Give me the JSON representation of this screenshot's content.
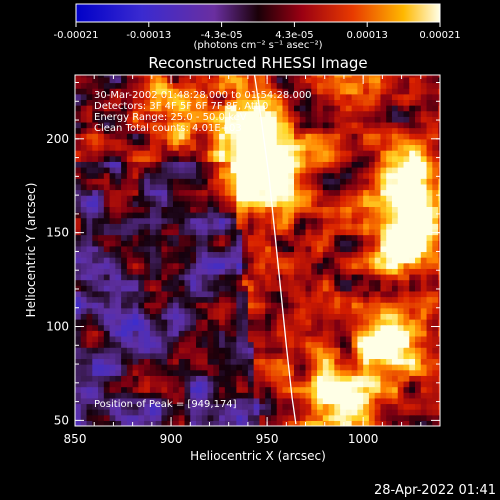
{
  "colorbar": {
    "tick_labels": [
      "-0.00021",
      "-0.00013",
      "-4.3e-05",
      "4.3e-05",
      "0.00013",
      "0.00021"
    ],
    "unit_label": "(photons cm⁻² s⁻¹ asec⁻²)",
    "range": [
      -0.00021,
      0.00021
    ]
  },
  "chart_data": {
    "type": "heatmap",
    "title": "Reconstructed RHESSI Image",
    "xlabel": "Heliocentric X (arcsec)",
    "ylabel": "Heliocentric Y (arcsec)",
    "xlim": [
      850,
      1040
    ],
    "ylim": [
      47,
      234
    ],
    "x_ticks": [
      850,
      900,
      950,
      1000
    ],
    "y_ticks": [
      50,
      100,
      150,
      200
    ],
    "x_tick_labels": [
      "850",
      "900",
      "950",
      "1000"
    ],
    "y_tick_labels": [
      "50",
      "100",
      "150",
      "200"
    ],
    "annotations": [
      "30-Mar-2002 01:48:28.000 to 01:54:28.000",
      "Detectors: 3F 4F 5F 6F 7F 8F, Att 0",
      "Energy Range: 25.0 - 50.0 keV",
      "Clean    Total counts: 4.01E+03"
    ],
    "peak_label": "Position of Peak = [949,174]",
    "peak_position": [
      949,
      174
    ],
    "limb_curve": [
      [
        943,
        237
      ],
      [
        947,
        210
      ],
      [
        951,
        180
      ],
      [
        954,
        150
      ],
      [
        957,
        120
      ],
      [
        960,
        90
      ],
      [
        963,
        62
      ],
      [
        965,
        48
      ]
    ],
    "bright_sources": [
      {
        "x": 947,
        "y": 180,
        "peak": 1.0
      },
      {
        "x": 940,
        "y": 205,
        "peak": 0.8
      },
      {
        "x": 903,
        "y": 215,
        "peak": 0.6
      },
      {
        "x": 1020,
        "y": 145,
        "peak": 0.75
      },
      {
        "x": 1025,
        "y": 175,
        "peak": 0.6
      },
      {
        "x": 1010,
        "y": 90,
        "peak": 0.55
      },
      {
        "x": 985,
        "y": 60,
        "peak": 0.55
      }
    ]
  },
  "footer_timestamp": "28-Apr-2022 01:41"
}
